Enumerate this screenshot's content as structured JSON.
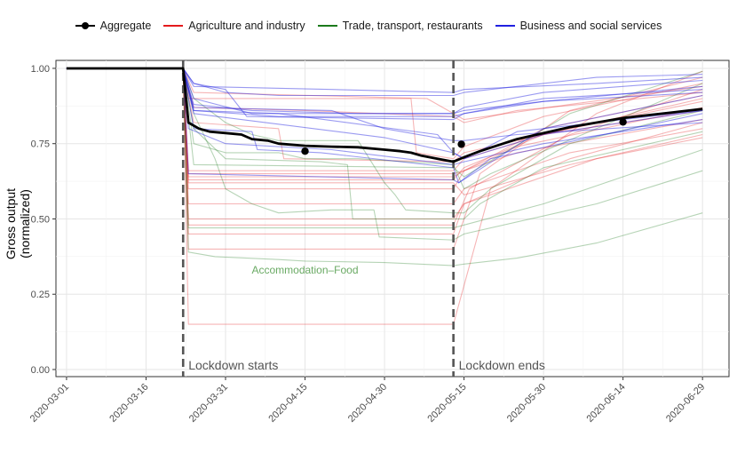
{
  "chart_data": {
    "type": "line",
    "title": "",
    "xlabel": "",
    "ylabel": "Gross output (normalized)",
    "ylim": [
      0,
      1.05
    ],
    "grid": true,
    "legend_position": "top",
    "x_ticks": [
      "2020-03-01",
      "2020-03-16",
      "2020-03-31",
      "2020-04-15",
      "2020-04-30",
      "2020-05-15",
      "2020-05-30",
      "2020-06-14",
      "2020-06-29"
    ],
    "y_ticks": [
      "0.00",
      "0.25",
      "0.50",
      "0.75",
      "1.00"
    ],
    "x_range_days": [
      -2,
      125
    ],
    "legend": [
      {
        "name": "Aggregate",
        "color": "#000000"
      },
      {
        "name": "Agriculture and industry",
        "color": "#e41a1c"
      },
      {
        "name": "Trade, transport, restaurants",
        "color": "#1b7a1b"
      },
      {
        "name": "Business and social services",
        "color": "#2020e0"
      }
    ],
    "vlines": [
      {
        "day": 22,
        "label": "Lockdown starts"
      },
      {
        "day": 73,
        "label": "Lockdown ends"
      }
    ],
    "annotation": {
      "text": "Accommodation–Food",
      "day": 45,
      "y": 0.33,
      "color": "#6aaa64"
    },
    "aggregate": {
      "x": [
        0,
        22,
        23,
        25,
        27,
        30,
        33,
        35,
        38,
        40,
        45,
        50,
        55,
        60,
        63,
        65,
        67,
        70,
        73,
        75,
        78,
        85,
        95,
        105,
        115,
        120
      ],
      "y": [
        1.0,
        1.0,
        0.82,
        0.8,
        0.79,
        0.785,
        0.78,
        0.765,
        0.76,
        0.75,
        0.743,
        0.74,
        0.738,
        0.73,
        0.725,
        0.72,
        0.71,
        0.7,
        0.69,
        0.705,
        0.725,
        0.765,
        0.805,
        0.835,
        0.855,
        0.865
      ]
    },
    "aggregate_points": [
      {
        "x": 45,
        "y": 0.725
      },
      {
        "x": 74.5,
        "y": 0.748
      },
      {
        "x": 105,
        "y": 0.822
      }
    ],
    "series": [
      {
        "name": "Agriculture and industry",
        "group": "agri",
        "x": [
          0,
          22,
          23,
          73,
          75,
          85,
          120
        ],
        "y": [
          1,
          1,
          0.65,
          0.65,
          0.66,
          0.72,
          0.83
        ]
      },
      {
        "name": "Agriculture and industry",
        "group": "agri",
        "x": [
          0,
          22,
          23,
          73,
          75,
          85,
          120
        ],
        "y": [
          1,
          1,
          0.64,
          0.64,
          0.66,
          0.74,
          0.87
        ]
      },
      {
        "name": "Agriculture and industry",
        "group": "agri",
        "x": [
          0,
          22,
          23,
          73,
          75,
          90,
          120
        ],
        "y": [
          1,
          1,
          0.63,
          0.63,
          0.67,
          0.78,
          0.9
        ]
      },
      {
        "name": "Agriculture and industry",
        "group": "agri",
        "x": [
          0,
          22,
          23,
          65,
          66,
          73,
          75,
          90,
          120
        ],
        "y": [
          1,
          1,
          0.9,
          0.9,
          0.72,
          0.7,
          0.74,
          0.84,
          0.95
        ]
      },
      {
        "name": "Agriculture and industry",
        "group": "agri",
        "x": [
          0,
          22,
          24,
          45,
          73,
          75,
          85,
          120
        ],
        "y": [
          1,
          1,
          0.87,
          0.86,
          0.84,
          0.82,
          0.86,
          0.92
        ]
      },
      {
        "name": "Agriculture and industry",
        "group": "agri",
        "x": [
          0,
          22,
          24,
          40,
          41,
          73,
          75,
          95,
          120
        ],
        "y": [
          1,
          1,
          0.82,
          0.8,
          0.7,
          0.69,
          0.72,
          0.8,
          0.89
        ]
      },
      {
        "name": "Agriculture and industry",
        "group": "agri",
        "x": [
          0,
          22,
          23,
          73,
          75,
          95,
          120
        ],
        "y": [
          1,
          1,
          0.5,
          0.5,
          0.55,
          0.7,
          0.82
        ]
      },
      {
        "name": "Agriculture and industry",
        "group": "agri",
        "x": [
          0,
          22,
          23,
          73,
          76,
          95,
          120
        ],
        "y": [
          1,
          1,
          0.48,
          0.48,
          0.6,
          0.78,
          0.93
        ]
      },
      {
        "name": "Agriculture and industry",
        "group": "agri",
        "x": [
          0,
          22,
          23,
          73,
          75,
          100,
          120
        ],
        "y": [
          1,
          1,
          0.45,
          0.45,
          0.55,
          0.7,
          0.77
        ]
      },
      {
        "name": "Agriculture and industry",
        "group": "agri",
        "x": [
          0,
          22,
          23,
          73,
          80,
          100,
          120
        ],
        "y": [
          1,
          1,
          0.15,
          0.15,
          0.6,
          0.85,
          0.99
        ]
      },
      {
        "name": "Agriculture and industry",
        "group": "agri",
        "x": [
          0,
          22,
          23,
          73,
          78,
          95,
          120
        ],
        "y": [
          1,
          1,
          0.4,
          0.4,
          0.65,
          0.86,
          0.97
        ]
      },
      {
        "name": "Agriculture and industry",
        "group": "agri",
        "x": [
          0,
          22,
          23,
          73,
          75,
          90,
          120
        ],
        "y": [
          1,
          1,
          0.66,
          0.66,
          0.7,
          0.78,
          0.86
        ]
      },
      {
        "name": "Agriculture and industry",
        "group": "agri",
        "x": [
          0,
          22,
          23,
          73,
          75,
          95,
          120
        ],
        "y": [
          1,
          1,
          0.55,
          0.55,
          0.6,
          0.72,
          0.8
        ]
      },
      {
        "name": "Agriculture and industry",
        "group": "agri",
        "x": [
          0,
          22,
          24,
          68,
          73,
          75,
          95,
          120
        ],
        "y": [
          1,
          1,
          0.92,
          0.9,
          0.85,
          0.83,
          0.88,
          0.94
        ]
      },
      {
        "name": "Agriculture and industry",
        "group": "agri",
        "x": [
          0,
          22,
          23,
          73,
          75,
          90,
          120
        ],
        "y": [
          1,
          1,
          0.6,
          0.6,
          0.66,
          0.8,
          0.91
        ]
      },
      {
        "name": "Agriculture and industry",
        "group": "agri",
        "x": [
          0,
          22,
          23,
          73,
          75,
          95,
          120
        ],
        "y": [
          1,
          1,
          0.62,
          0.62,
          0.58,
          0.68,
          0.78
        ]
      },
      {
        "name": "Trade, transport, restaurants",
        "group": "trade",
        "x": [
          0,
          22,
          23,
          28,
          34,
          40,
          45,
          60,
          73,
          75,
          85,
          100,
          120
        ],
        "y": [
          1,
          1,
          0.39,
          0.375,
          0.37,
          0.365,
          0.36,
          0.355,
          0.345,
          0.35,
          0.37,
          0.42,
          0.52
        ]
      },
      {
        "name": "Trade, transport, restaurants",
        "group": "trade",
        "x": [
          0,
          22,
          24,
          28,
          30,
          35,
          40,
          50,
          58,
          59,
          73,
          75,
          100,
          120
        ],
        "y": [
          1,
          1,
          0.85,
          0.7,
          0.6,
          0.55,
          0.52,
          0.53,
          0.53,
          0.44,
          0.43,
          0.45,
          0.55,
          0.66
        ]
      },
      {
        "name": "Trade, transport, restaurants",
        "group": "trade",
        "x": [
          0,
          22,
          24,
          30,
          48,
          53,
          54,
          73,
          75,
          78,
          90,
          120
        ],
        "y": [
          1,
          1,
          0.8,
          0.7,
          0.69,
          0.68,
          0.5,
          0.5,
          0.5,
          0.55,
          0.67,
          0.79
        ]
      },
      {
        "name": "Trade, transport, restaurants",
        "group": "trade",
        "x": [
          0,
          22,
          24,
          30,
          35,
          40,
          48,
          55,
          60,
          62,
          64,
          73,
          75,
          80,
          95,
          120
        ],
        "y": [
          1,
          1,
          0.9,
          0.82,
          0.78,
          0.76,
          0.76,
          0.76,
          0.62,
          0.58,
          0.53,
          0.52,
          0.52,
          0.6,
          0.75,
          0.86
        ]
      },
      {
        "name": "Trade, transport, restaurants",
        "group": "trade",
        "x": [
          0,
          22,
          24,
          30,
          40,
          45,
          55,
          73,
          75,
          80,
          100,
          120
        ],
        "y": [
          1,
          1,
          0.75,
          0.72,
          0.72,
          0.7,
          0.7,
          0.68,
          0.6,
          0.65,
          0.8,
          0.95
        ]
      },
      {
        "name": "Trade, transport, restaurants",
        "group": "trade",
        "x": [
          0,
          22,
          23,
          73,
          75,
          90,
          120
        ],
        "y": [
          1,
          1,
          0.47,
          0.47,
          0.48,
          0.55,
          0.73
        ]
      },
      {
        "name": "Trade, transport, restaurants",
        "group": "trade",
        "x": [
          0,
          22,
          24,
          73,
          75,
          95,
          120
        ],
        "y": [
          1,
          1,
          0.68,
          0.67,
          0.64,
          0.85,
          0.99
        ]
      },
      {
        "name": "Business and social services",
        "group": "biz",
        "x": [
          0,
          22,
          24,
          50,
          73,
          75,
          100,
          120
        ],
        "y": [
          1,
          1,
          0.94,
          0.93,
          0.92,
          0.93,
          0.95,
          0.97
        ]
      },
      {
        "name": "Business and social services",
        "group": "biz",
        "x": [
          0,
          22,
          24,
          30,
          40,
          73,
          75,
          100,
          120
        ],
        "y": [
          1,
          1,
          0.95,
          0.92,
          0.91,
          0.91,
          0.92,
          0.97,
          0.98
        ]
      },
      {
        "name": "Business and social services",
        "group": "biz",
        "x": [
          0,
          22,
          24,
          35,
          55,
          73,
          75,
          90,
          120
        ],
        "y": [
          1,
          1,
          0.88,
          0.86,
          0.85,
          0.85,
          0.87,
          0.92,
          0.96
        ]
      },
      {
        "name": "Business and social services",
        "group": "biz",
        "x": [
          0,
          22,
          24,
          30,
          34,
          73,
          75,
          90,
          120
        ],
        "y": [
          1,
          1,
          0.95,
          0.93,
          0.84,
          0.83,
          0.85,
          0.89,
          0.94
        ]
      },
      {
        "name": "Business and social services",
        "group": "biz",
        "x": [
          0,
          22,
          24,
          35,
          50,
          73,
          75,
          90,
          120
        ],
        "y": [
          1,
          1,
          0.9,
          0.85,
          0.85,
          0.85,
          0.86,
          0.89,
          0.92
        ]
      },
      {
        "name": "Business and social services",
        "group": "biz",
        "x": [
          0,
          22,
          24,
          40,
          73,
          75,
          90,
          120
        ],
        "y": [
          1,
          1,
          0.86,
          0.84,
          0.84,
          0.85,
          0.9,
          0.93
        ]
      },
      {
        "name": "Business and social services",
        "group": "biz",
        "x": [
          0,
          22,
          24,
          50,
          60,
          73,
          75,
          85,
          120
        ],
        "y": [
          1,
          1,
          0.87,
          0.86,
          0.8,
          0.76,
          0.76,
          0.78,
          0.82
        ]
      },
      {
        "name": "Business and social services",
        "group": "biz",
        "x": [
          0,
          22,
          24,
          40,
          70,
          73,
          75,
          90,
          120
        ],
        "y": [
          1,
          1,
          0.86,
          0.85,
          0.78,
          0.72,
          0.7,
          0.78,
          0.86
        ]
      },
      {
        "name": "Business and social services",
        "group": "biz",
        "x": [
          0,
          22,
          23,
          30,
          50,
          73,
          75,
          90,
          120
        ],
        "y": [
          1,
          1,
          0.8,
          0.75,
          0.73,
          0.68,
          0.69,
          0.75,
          0.83
        ]
      },
      {
        "name": "Business and social services",
        "group": "biz",
        "x": [
          0,
          22,
          23,
          73,
          74,
          90,
          120
        ],
        "y": [
          1,
          1,
          0.65,
          0.63,
          0.62,
          0.8,
          0.91
        ]
      },
      {
        "name": "Business and social services",
        "group": "biz",
        "x": [
          0,
          22,
          24,
          35,
          36,
          48,
          73,
          74,
          80,
          120
        ],
        "y": [
          1,
          1,
          0.8,
          0.79,
          0.73,
          0.72,
          0.67,
          0.62,
          0.7,
          0.85
        ]
      },
      {
        "name": "Business and social services",
        "group": "biz",
        "x": [
          0,
          22,
          24,
          60,
          73,
          75,
          85,
          120
        ],
        "y": [
          1,
          1,
          0.85,
          0.77,
          0.72,
          0.7,
          0.79,
          0.86
        ]
      }
    ]
  }
}
